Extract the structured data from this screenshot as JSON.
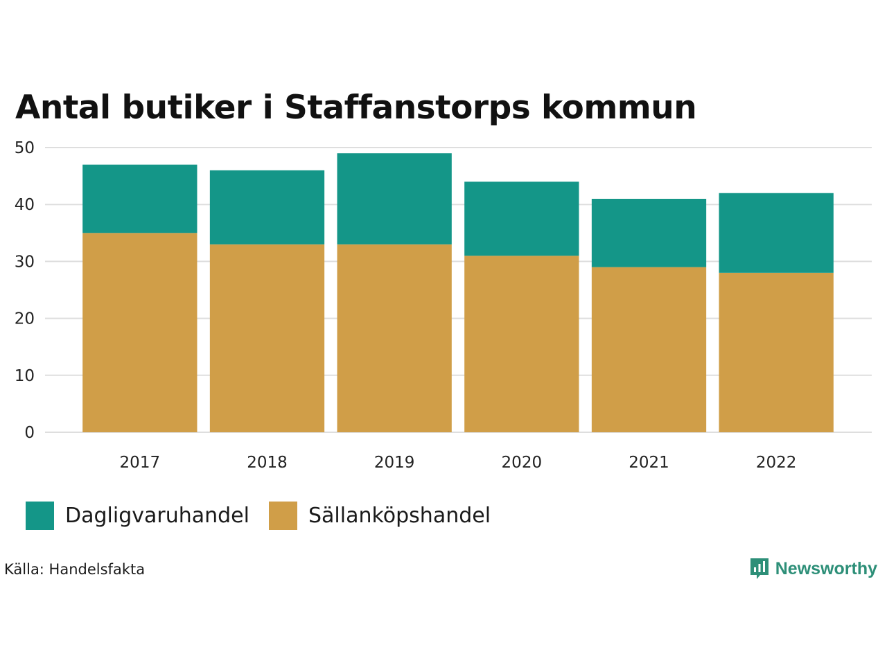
{
  "title": "Antal butiker i Staffanstorps kommun",
  "chart_data": {
    "type": "bar",
    "stacked": true,
    "title": "Antal butiker i Staffanstorps kommun",
    "categories": [
      "2017",
      "2018",
      "2019",
      "2020",
      "2021",
      "2022"
    ],
    "series": [
      {
        "name": "Sällanköpshandel",
        "color": "#d09e48",
        "values": [
          35,
          33,
          33,
          31,
          29,
          28
        ]
      },
      {
        "name": "Dagligvaruhandel",
        "color": "#149688",
        "values": [
          12,
          13,
          16,
          13,
          12,
          14
        ]
      }
    ],
    "ylim": [
      0,
      50
    ],
    "yticks": [
      "0",
      "10",
      "20",
      "30",
      "40",
      "50"
    ],
    "xlabel": "",
    "ylabel": "",
    "grid": true,
    "legend_position": "bottom-left"
  },
  "legend": [
    {
      "label": "Dagligvaruhandel",
      "color": "#149688"
    },
    {
      "label": "Sällanköpshandel",
      "color": "#d09e48"
    }
  ],
  "source": "Källa: Handelsfakta",
  "brand": {
    "name": "Newsworthy",
    "icon": "bar-chart-speech-icon",
    "color": "#2d8f78"
  }
}
